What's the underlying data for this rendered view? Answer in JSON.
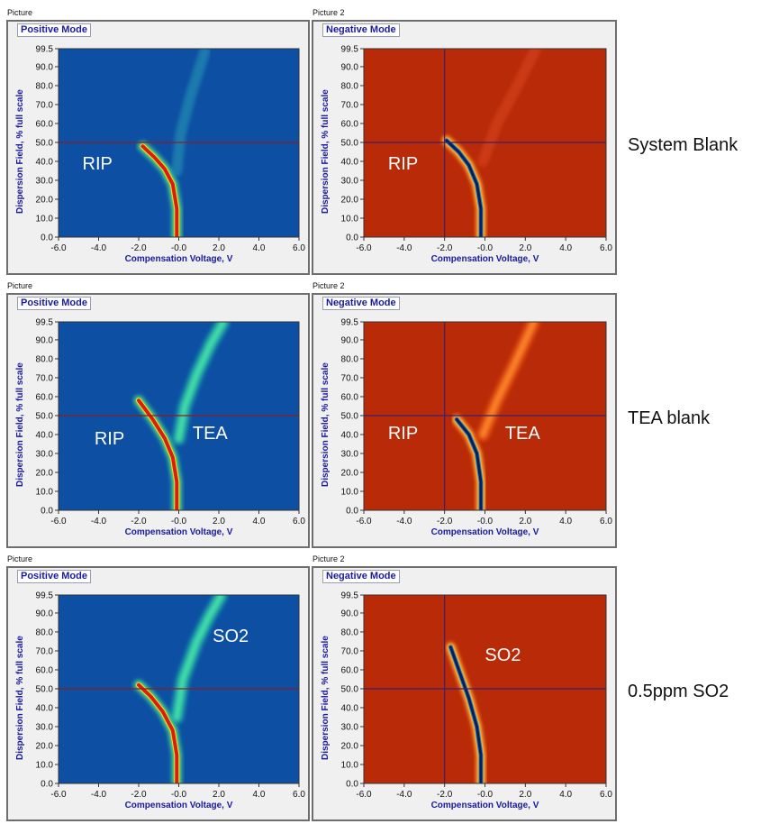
{
  "rows": [
    {
      "label": "System Blank",
      "left": {
        "caption": "Picture",
        "mode": "Positive Mode",
        "annotations": [
          "RIP"
        ]
      },
      "right": {
        "caption": "Picture 2",
        "mode": "Negative Mode",
        "annotations": [
          "RIP"
        ]
      }
    },
    {
      "label": "TEA blank",
      "left": {
        "caption": "Picture",
        "mode": "Positive Mode",
        "annotations": [
          "RIP",
          "TEA"
        ]
      },
      "right": {
        "caption": "Picture 2",
        "mode": "Negative Mode",
        "annotations": [
          "RIP",
          "TEA"
        ]
      }
    },
    {
      "label": "0.5ppm SO2",
      "left": {
        "caption": "Picture",
        "mode": "Positive Mode",
        "annotations": [
          "SO2"
        ]
      },
      "right": {
        "caption": "Picture 2",
        "mode": "Negative Mode",
        "annotations": [
          "SO2"
        ]
      }
    }
  ],
  "axes": {
    "xlabel": "Compensation Voltage, V",
    "ylabel": "Dispersion Field, % full scale",
    "xticks": [
      "-6.0",
      "-4.0",
      "-2.0",
      "-0.0",
      "2.0",
      "4.0",
      "6.0"
    ],
    "yticks": [
      "0.0",
      "10.0",
      "20.0",
      "30.0",
      "40.0",
      "50.0",
      "60.0",
      "70.0",
      "80.0",
      "90.0",
      "99.5"
    ]
  },
  "colors": {
    "positive_background": "#0d4fa3",
    "negative_background": "#b82a08",
    "axis_title": "#1a1aa0",
    "cursor_positive": "#8a1f1f",
    "cursor_negative": "#3b1f6a"
  },
  "chart_data": [
    {
      "type": "heatmap",
      "title": "Positive Mode",
      "xlabel": "Compensation Voltage, V",
      "ylabel": "Dispersion Field, % full scale",
      "xlim": [
        -6.0,
        6.0
      ],
      "ylim": [
        0.0,
        99.5
      ],
      "cursor": {
        "y": 50.0
      },
      "annotations": [
        {
          "text": "RIP",
          "x": -4.0,
          "y": 38.0
        }
      ],
      "features": [
        {
          "name": "RIP",
          "points": [
            [
              -0.1,
              0
            ],
            [
              -0.1,
              15
            ],
            [
              -0.3,
              28
            ],
            [
              -0.7,
              36
            ],
            [
              -1.2,
              42
            ],
            [
              -1.8,
              48
            ]
          ],
          "intensity": "high"
        },
        {
          "name": "faint",
          "points": [
            [
              -0.1,
              35
            ],
            [
              0.1,
              55
            ],
            [
              0.6,
              75
            ],
            [
              1.3,
              98
            ]
          ],
          "intensity": "low"
        }
      ]
    },
    {
      "type": "heatmap",
      "title": "Negative Mode",
      "xlabel": "Compensation Voltage, V",
      "ylabel": "Dispersion Field, % full scale",
      "xlim": [
        -6.0,
        6.0
      ],
      "ylim": [
        0.0,
        99.5
      ],
      "cursor": {
        "x": -2.0,
        "y": 50.0
      },
      "annotations": [
        {
          "text": "RIP",
          "x": -4.0,
          "y": 38.0
        }
      ],
      "features": [
        {
          "name": "RIP",
          "points": [
            [
              -0.2,
              0
            ],
            [
              -0.2,
              15
            ],
            [
              -0.4,
              28
            ],
            [
              -0.8,
              38
            ],
            [
              -1.3,
              45
            ],
            [
              -1.9,
              51
            ]
          ],
          "intensity": "high"
        },
        {
          "name": "faint",
          "points": [
            [
              -0.1,
              40
            ],
            [
              0.6,
              60
            ],
            [
              1.6,
              80
            ],
            [
              2.5,
              99
            ]
          ],
          "intensity": "low"
        }
      ]
    },
    {
      "type": "heatmap",
      "title": "Positive Mode",
      "xlabel": "Compensation Voltage, V",
      "ylabel": "Dispersion Field, % full scale",
      "xlim": [
        -6.0,
        6.0
      ],
      "ylim": [
        0.0,
        99.5
      ],
      "cursor": {
        "y": 50.0
      },
      "annotations": [
        {
          "text": "RIP",
          "x": -3.4,
          "y": 37.0
        },
        {
          "text": "TEA",
          "x": 1.5,
          "y": 40.0
        }
      ],
      "features": [
        {
          "name": "RIP",
          "points": [
            [
              -0.1,
              0
            ],
            [
              -0.1,
              15
            ],
            [
              -0.3,
              28
            ],
            [
              -0.7,
              38
            ],
            [
              -1.3,
              48
            ],
            [
              -2.0,
              58
            ]
          ],
          "intensity": "high"
        },
        {
          "name": "TEA",
          "points": [
            [
              0.0,
              38
            ],
            [
              0.3,
              55
            ],
            [
              0.9,
              72
            ],
            [
              1.6,
              88
            ],
            [
              2.2,
              99
            ]
          ],
          "intensity": "medium"
        }
      ]
    },
    {
      "type": "heatmap",
      "title": "Negative Mode",
      "xlabel": "Compensation Voltage, V",
      "ylabel": "Dispersion Field, % full scale",
      "xlim": [
        -6.0,
        6.0
      ],
      "ylim": [
        0.0,
        99.5
      ],
      "cursor": {
        "x": -2.0,
        "y": 50.0
      },
      "annotations": [
        {
          "text": "RIP",
          "x": -4.0,
          "y": 40.0
        },
        {
          "text": "TEA",
          "x": 1.8,
          "y": 40.0
        }
      ],
      "features": [
        {
          "name": "RIP",
          "points": [
            [
              -0.2,
              0
            ],
            [
              -0.2,
              15
            ],
            [
              -0.4,
              30
            ],
            [
              -0.8,
              40
            ],
            [
              -1.4,
              48
            ]
          ],
          "intensity": "high"
        },
        {
          "name": "TEA",
          "points": [
            [
              -0.1,
              40
            ],
            [
              0.6,
              58
            ],
            [
              1.5,
              78
            ],
            [
              2.4,
              99
            ]
          ],
          "intensity": "medium"
        }
      ]
    },
    {
      "type": "heatmap",
      "title": "Positive Mode",
      "xlabel": "Compensation Voltage, V",
      "ylabel": "Dispersion Field, % full scale",
      "xlim": [
        -6.0,
        6.0
      ],
      "ylim": [
        0.0,
        99.5
      ],
      "cursor": {
        "y": 50.0
      },
      "annotations": [
        {
          "text": "SO2",
          "x": 2.5,
          "y": 77.0
        }
      ],
      "features": [
        {
          "name": "RIP",
          "points": [
            [
              -0.1,
              0
            ],
            [
              -0.1,
              15
            ],
            [
              -0.3,
              28
            ],
            [
              -0.8,
              38
            ],
            [
              -1.4,
              46
            ],
            [
              -2.0,
              52
            ]
          ],
          "intensity": "high"
        },
        {
          "name": "SO2",
          "points": [
            [
              -0.1,
              35
            ],
            [
              0.2,
              55
            ],
            [
              0.9,
              75
            ],
            [
              1.5,
              88
            ],
            [
              2.1,
              99
            ]
          ],
          "intensity": "medium"
        }
      ]
    },
    {
      "type": "heatmap",
      "title": "Negative Mode",
      "xlabel": "Compensation Voltage, V",
      "ylabel": "Dispersion Field, % full scale",
      "xlim": [
        -6.0,
        6.0
      ],
      "ylim": [
        0.0,
        99.5
      ],
      "cursor": {
        "x": -2.0,
        "y": 50.0
      },
      "annotations": [
        {
          "text": "SO2",
          "x": 0.8,
          "y": 67.0
        }
      ],
      "features": [
        {
          "name": "SO2",
          "points": [
            [
              -0.2,
              0
            ],
            [
              -0.2,
              15
            ],
            [
              -0.4,
              30
            ],
            [
              -0.8,
              45
            ],
            [
              -1.3,
              60
            ],
            [
              -1.7,
              72
            ]
          ],
          "intensity": "high"
        }
      ]
    }
  ]
}
